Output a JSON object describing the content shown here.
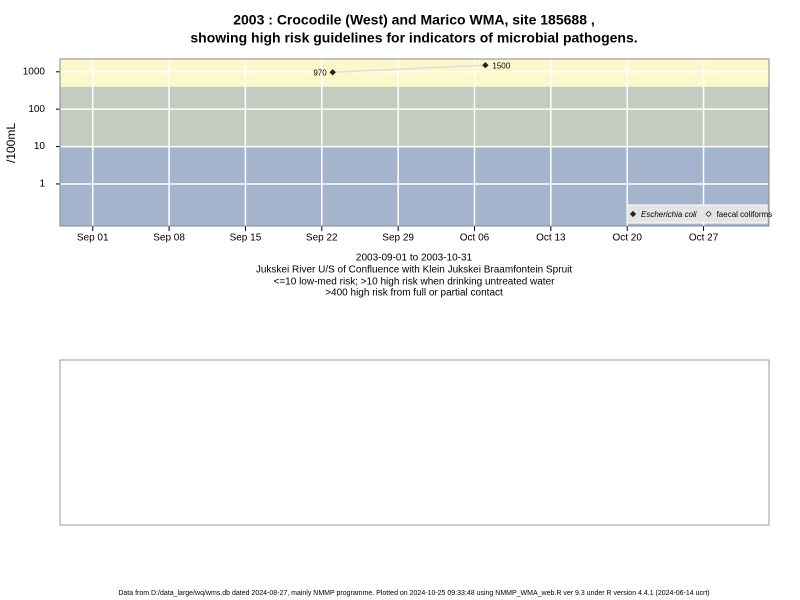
{
  "chart_data": {
    "type": "line",
    "title": [
      "2003 : Crocodile (West) and Marico WMA, site 185688 ,",
      "showing high risk guidelines for indicators of microbial pathogens."
    ],
    "y_label": "/100mL",
    "log_y": true,
    "ylim": [
      0.075,
      2200
    ],
    "yticks": [
      1,
      10,
      100,
      1000
    ],
    "xlim": [
      "2003-08-29",
      "2003-11-02"
    ],
    "xticks": [
      {
        "value": "2003-09-01",
        "label": "Sep 01"
      },
      {
        "value": "2003-09-08",
        "label": "Sep 08"
      },
      {
        "value": "2003-09-15",
        "label": "Sep 15"
      },
      {
        "value": "2003-09-22",
        "label": "Sep 22"
      },
      {
        "value": "2003-09-29",
        "label": "Sep 29"
      },
      {
        "value": "2003-10-06",
        "label": "Oct 06"
      },
      {
        "value": "2003-10-13",
        "label": "Oct 13"
      },
      {
        "value": "2003-10-20",
        "label": "Oct 20"
      },
      {
        "value": "2003-10-27",
        "label": "Oct 27"
      }
    ],
    "grid": true,
    "guidelines": [
      10,
      400
    ],
    "band_colors": [
      "#a4b4cc",
      "#c4ccc0",
      "#fdf7cc"
    ],
    "legend": "bottom-right",
    "series": [
      {
        "name": "Escherichia coli",
        "color": "#222222",
        "line_color": "#dddddd",
        "x": [
          "2003-09-23",
          "2003-10-07"
        ],
        "values": [
          970,
          1500
        ]
      },
      {
        "name": "faecal coliforms",
        "color": "#222222",
        "x": [],
        "values": []
      }
    ],
    "subtitle": [
      "2003-09-01 to 2003-10-31",
      "Jukskei River U/S of Confluence with Klein Jukskei Braamfontein Spruit",
      "<=10 low-med risk; >10 high risk when drinking untreated water",
      ">400 high risk from full or partial contact"
    ],
    "footer": "Data from D:/data_large/wq/wms.db dated 2024-08-27, mainly NMMP programme. Plotted on 2024-10-25 09:33:48 using NMMP_WMA_web.R ver 9.3 under R version 4.4.1 (2024-06-14 ucrt)"
  }
}
